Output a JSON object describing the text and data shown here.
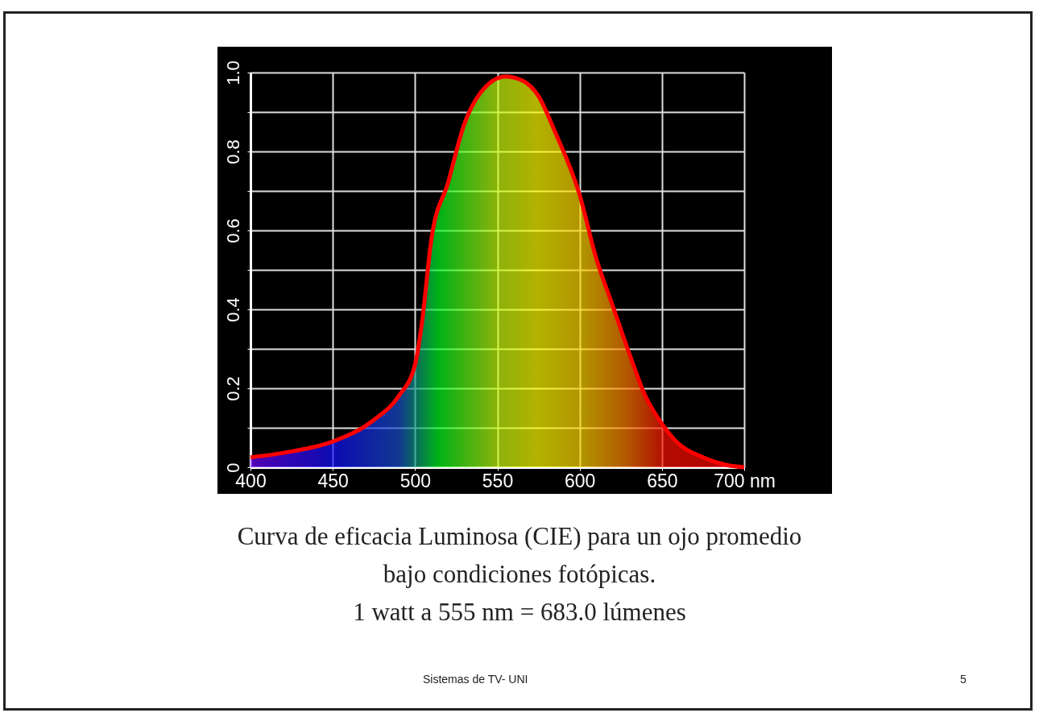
{
  "chart_data": {
    "type": "area",
    "x": [
      400,
      425,
      450,
      475,
      490,
      500,
      504,
      510,
      520,
      530,
      540,
      555,
      565,
      575,
      585,
      600,
      610,
      620,
      630,
      640,
      650,
      660,
      675,
      690,
      700
    ],
    "series": [
      {
        "color": "#ff0000",
        "values": [
          0.025,
          0.04,
          0.065,
          0.12,
          0.18,
          0.26,
          0.36,
          0.58,
          0.72,
          0.87,
          0.95,
          0.99,
          0.98,
          0.94,
          0.85,
          0.69,
          0.53,
          0.41,
          0.29,
          0.18,
          0.11,
          0.06,
          0.025,
          0.005,
          0
        ]
      }
    ],
    "xlim": [
      400,
      700
    ],
    "xticks": [
      400,
      450,
      500,
      550,
      600,
      650,
      {
        "value": 700,
        "label": "700 nm"
      }
    ],
    "ylim": [
      0,
      1
    ],
    "yticks": [
      0,
      {
        "value": 0.1,
        "label": null
      },
      0.2,
      {
        "value": 0.3,
        "label": null
      },
      0.4,
      {
        "value": 0.5,
        "label": null
      },
      0.6,
      {
        "value": 0.7,
        "label": null
      },
      0.8,
      {
        "value": 0.9,
        "label": null
      },
      {
        "value": 1,
        "label": "1.0"
      }
    ],
    "grid": true,
    "annotations": [
      "Curva de eficacia Luminosa (CIE) para un ojo promedio",
      "bajo condiciones fotópicas.",
      "1 watt a 555 nm = 683.0 lúmenes",
      "Sistemas de TV- UNI",
      "5"
    ]
  }
}
